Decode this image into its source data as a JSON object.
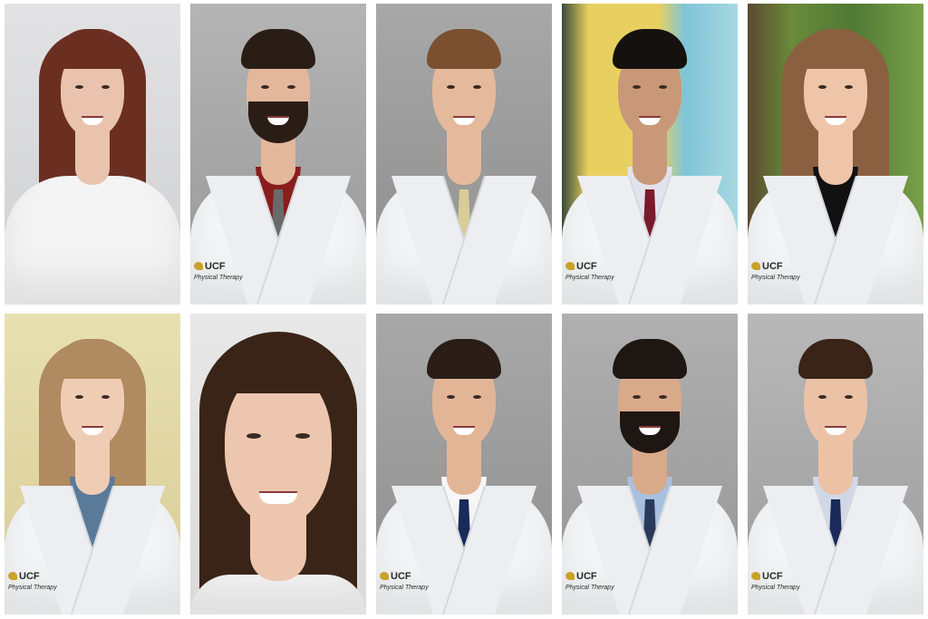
{
  "collage": {
    "logo_text": "UCF",
    "logo_subtext": "Physical Therapy",
    "logo_color": "#c9a227",
    "tiles": [
      {
        "bg": "linear-gradient(#e2e2e4,#cfd0d2)",
        "hair": "#6b2f22",
        "skin": "#e9c3ad",
        "shirt": "#f4f4f4",
        "tie": null,
        "longhair": true,
        "beard": false,
        "coat": false,
        "logo": false,
        "closeup": false
      },
      {
        "bg": "linear-gradient(#b4b4b4,#989898)",
        "hair": "#2a1d16",
        "skin": "#e2b79c",
        "shirt": "#8a1c1c",
        "tie": "#6a6a6a",
        "longhair": false,
        "beard": true,
        "coat": true,
        "logo": true,
        "closeup": false
      },
      {
        "bg": "linear-gradient(#a8a8a8,#8c8c8c)",
        "hair": "#7a5030",
        "skin": "#e4b99c",
        "shirt": "#9a9a98",
        "tie": "#d8cc98",
        "longhair": false,
        "beard": false,
        "coat": true,
        "logo": false,
        "closeup": false
      },
      {
        "bg": "linear-gradient(90deg,#3a4a3a 0%,#e8d060 15%,#e8d060 55%,#7fc4d8 70%,#a8d8e0 100%)",
        "hair": "#15110e",
        "skin": "#c99878",
        "shirt": "#e2e3ee",
        "tie": "#7a1a2a",
        "longhair": false,
        "beard": false,
        "coat": true,
        "logo": true,
        "closeup": false
      },
      {
        "bg": "linear-gradient(90deg,#5a4a30 0%,#6a8a3a 25%,#4f7a34 60%,#7aa04a 100%)",
        "hair": "#8a6040",
        "skin": "#eec5a8",
        "shirt": "#111",
        "tie": null,
        "longhair": true,
        "beard": false,
        "coat": true,
        "logo": true,
        "closeup": false
      },
      {
        "bg": "linear-gradient(#e8e0b0,#d8cc98)",
        "hair": "#b08a60",
        "skin": "#efcdb5",
        "shirt": "#5a7a9a",
        "tie": null,
        "longhair": true,
        "beard": false,
        "coat": true,
        "logo": true,
        "closeup": false
      },
      {
        "bg": "linear-gradient(#e8e8e8,#dadada)",
        "hair": "#3a2418",
        "skin": "#ecc6ae",
        "shirt": "#f4f4f4",
        "tie": null,
        "longhair": true,
        "beard": false,
        "coat": false,
        "logo": false,
        "closeup": true
      },
      {
        "bg": "linear-gradient(#a8a8a8,#8e8e8e)",
        "hair": "#2a1d16",
        "skin": "#e2b597",
        "shirt": "#f6f6f6",
        "tie": "#1a2a5a",
        "longhair": false,
        "beard": false,
        "coat": true,
        "logo": true,
        "closeup": false
      },
      {
        "bg": "linear-gradient(#b0b0b0,#959595)",
        "hair": "#1e1612",
        "skin": "#d9aa8a",
        "shirt": "#a8c0e0",
        "tie": "#2a3a5a",
        "longhair": false,
        "beard": true,
        "coat": true,
        "logo": true,
        "closeup": false
      },
      {
        "bg": "linear-gradient(#b8b8b8,#9c9c9c)",
        "hair": "#3a2418",
        "skin": "#ebc2a6",
        "shirt": "#d0d8e8",
        "tie": "#1a2a5a",
        "longhair": false,
        "beard": false,
        "coat": true,
        "logo": true,
        "closeup": false
      }
    ]
  }
}
